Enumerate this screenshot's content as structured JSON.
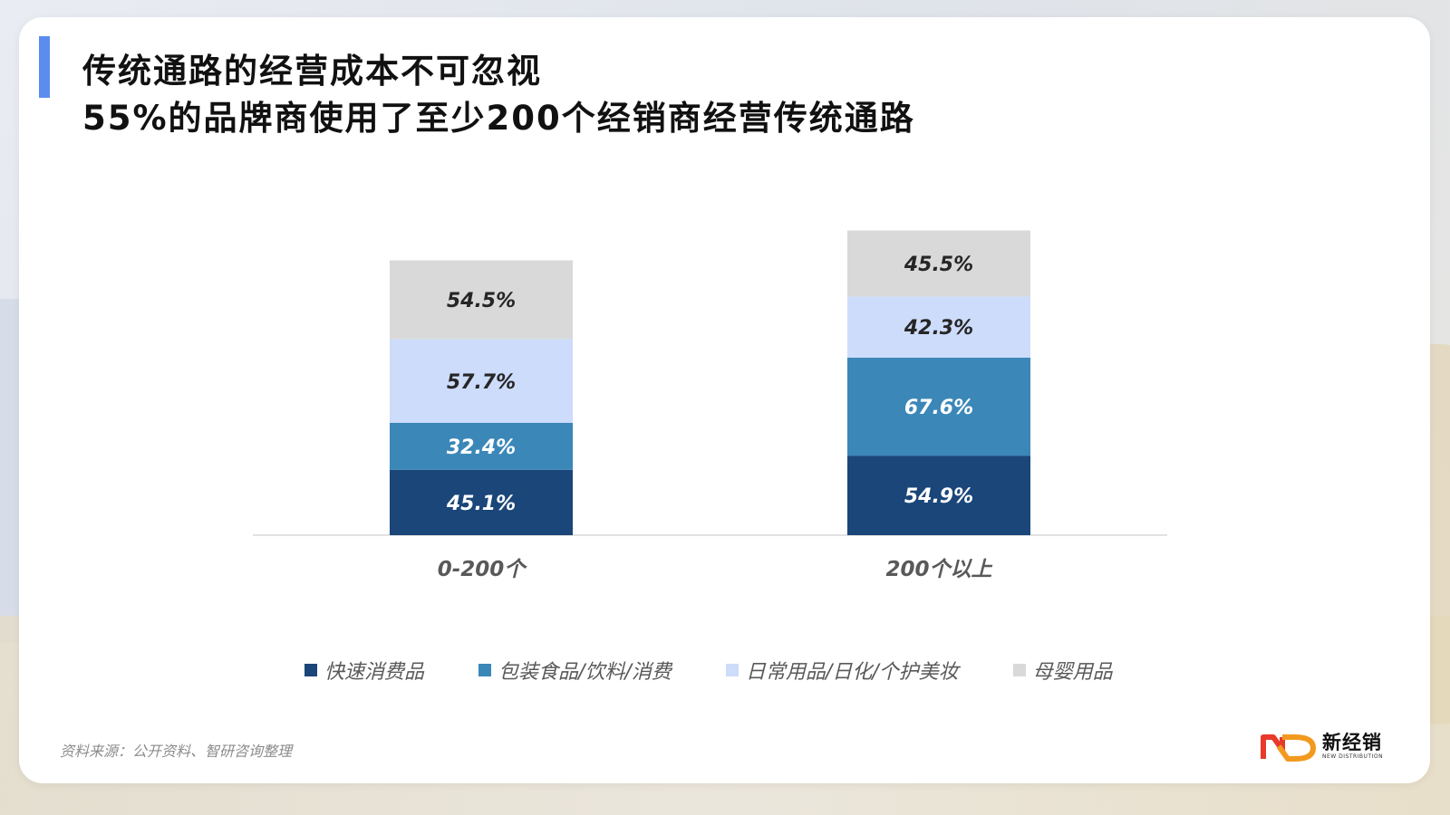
{
  "title_line1": "传统通路的经营成本不可忽视",
  "title_line2": "55%的品牌商使用了至少200个经销商经营传统通路",
  "source": "资料来源：公开资料、智研咨询整理",
  "logo": {
    "name_cn": "新经销",
    "name_en": "NEW DISTRIBUTION",
    "icon": "nd-logo-icon",
    "colors": [
      "#e8392b",
      "#f29a1f"
    ]
  },
  "chart_data": {
    "type": "bar",
    "stacked": true,
    "categories": [
      "0-200个",
      "200个以上"
    ],
    "series": [
      {
        "name": "快速消费品",
        "values": [
          45.1,
          54.9
        ],
        "labels": [
          "45.1%",
          "54.9%"
        ],
        "color": "#1a4679",
        "label_color": "#ffffff"
      },
      {
        "name": "包装食品/饮料/消费",
        "values": [
          32.4,
          67.6
        ],
        "labels": [
          "32.4%",
          "67.6%"
        ],
        "color": "#3b87b8",
        "label_color": "#ffffff"
      },
      {
        "name": "日常用品/日化/个护美妆",
        "values": [
          57.7,
          42.3
        ],
        "labels": [
          "57.7%",
          "42.3%"
        ],
        "color": "#cddcfb",
        "label_color": "#262626"
      },
      {
        "name": "母婴用品",
        "values": [
          54.5,
          45.5
        ],
        "labels": [
          "54.5%",
          "45.5%"
        ],
        "color": "#d9d9d9",
        "label_color": "#262626"
      }
    ],
    "grid": false,
    "legend_position": "bottom",
    "axis_line_color": "#d9d9d9"
  }
}
